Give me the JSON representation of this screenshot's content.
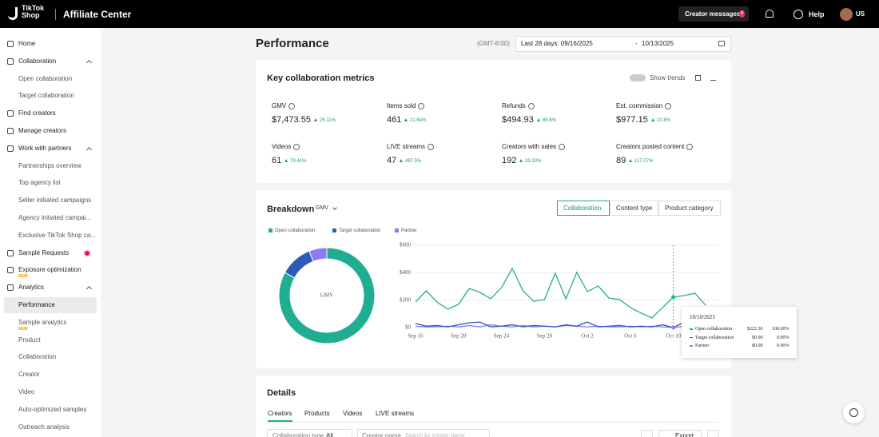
{
  "header": {
    "logo": [
      "TikTok",
      "Shop"
    ],
    "app_title": "Affiliate Center",
    "messages": "Creator messages",
    "messages_badge": "8",
    "help": "Help",
    "region": "US"
  },
  "sidebar": {
    "sections": [
      {
        "label": "Home"
      },
      {
        "label": "Collaboration",
        "children": [
          {
            "label": "Open collaboration"
          },
          {
            "label": "Target collaboration"
          }
        ]
      },
      {
        "label": "Find creators"
      },
      {
        "label": "Manage creators"
      },
      {
        "label": "Work with partners",
        "children": [
          {
            "label": "Partnerships overview"
          },
          {
            "label": "Top agency list"
          },
          {
            "label": "Seller initiated campaigns"
          },
          {
            "label": "Agency initiated campai..."
          },
          {
            "label": "Exclusive TikTok Shop ca..."
          }
        ]
      },
      {
        "label": "Sample Requests",
        "dot": true
      },
      {
        "label": "Exposure optimization",
        "badge": "NEW"
      },
      {
        "label": "Analytics",
        "children": [
          {
            "label": "Performance",
            "selected": true
          },
          {
            "label": "Sample analytics",
            "badge": "NEW"
          },
          {
            "label": "Product"
          },
          {
            "label": "Collaboration"
          },
          {
            "label": "Creator"
          },
          {
            "label": "Video"
          },
          {
            "label": "Auto-optimized samples"
          },
          {
            "label": "Outreach analysis"
          }
        ]
      }
    ]
  },
  "page": {
    "title": "Performance",
    "timezone": "(GMT-8:00)",
    "date_start": "Last 28 days: 09/16/2025",
    "date_sep": "-",
    "date_end": "10/13/2025"
  },
  "metrics": {
    "title": "Key collaboration metrics",
    "show_trends": "Show trends",
    "items": [
      {
        "label": "GMV",
        "value": "$7,473.55",
        "change": "25.11%"
      },
      {
        "label": "Items sold",
        "value": "461",
        "change": "21.64%"
      },
      {
        "label": "Refunds",
        "value": "$494.93",
        "change": "85.6%"
      },
      {
        "label": "Est. commission",
        "value": "$977.15",
        "change": "10.8%"
      },
      {
        "label": "Videos",
        "value": "61",
        "change": "79.41%"
      },
      {
        "label": "LIVE streams",
        "value": "47",
        "change": "487.5%"
      },
      {
        "label": "Creators with sales",
        "value": "192",
        "change": "33.33%"
      },
      {
        "label": "Creators posted content",
        "value": "89",
        "change": "117.07%"
      }
    ]
  },
  "breakdown": {
    "title": "Breakdown",
    "metric": "GMV",
    "tabs": [
      "Collaboration",
      "Content type",
      "Product category"
    ],
    "active_tab": 0,
    "donut": {
      "label": "GMV",
      "values": [
        83,
        11,
        6
      ]
    },
    "chart": {
      "type": "line",
      "categories": [
        "Sep 16",
        null,
        null,
        null,
        "Sep 20",
        null,
        null,
        null,
        "Sep 24",
        null,
        null,
        null,
        "Sep 28",
        null,
        null,
        null,
        "Oct 2",
        null,
        null,
        null,
        "Oct 6",
        null,
        null,
        null,
        "Oct 10",
        null,
        null,
        null
      ],
      "ylim": [
        0,
        600
      ],
      "yticks": [
        {
          "value": 0,
          "label": "$0"
        },
        {
          "value": 200,
          "label": "$200"
        },
        {
          "value": 400,
          "label": "$400"
        },
        {
          "value": 600,
          "label": "$600"
        }
      ],
      "series": [
        {
          "name": "Open collaboration",
          "color": "#1fae92",
          "values": [
            186,
            268,
            186,
            134,
            169,
            285,
            256,
            210,
            291,
            431,
            268,
            192,
            204,
            396,
            210,
            402,
            262,
            303,
            215,
            204,
            146,
            105,
            70,
            146,
            222.3,
            233,
            250,
            163
          ]
        },
        {
          "name": "Target collaboration",
          "color": "#2b5cb8",
          "values": [
            30,
            10,
            15,
            5,
            20,
            35,
            40,
            5,
            10,
            20,
            5,
            15,
            10,
            5,
            20,
            10,
            40,
            5,
            10,
            15,
            5,
            10,
            5,
            20,
            0,
            40,
            30,
            20
          ]
        },
        {
          "name": "Partner",
          "color": "#8d7cf3",
          "values": [
            10,
            5,
            5,
            10,
            5,
            15,
            5,
            20,
            10,
            5,
            15,
            5,
            10,
            5,
            15,
            10,
            5,
            10,
            5,
            5,
            10,
            5,
            10,
            5,
            0,
            10,
            5,
            5
          ]
        }
      ]
    },
    "tooltip": {
      "date": "10/10/2025",
      "rows": [
        {
          "value": "$222.30",
          "share": "100.00%"
        },
        {
          "value": "$0.00",
          "share": "0.00%"
        },
        {
          "value": "$0.00",
          "share": "0.00%"
        }
      ]
    }
  },
  "details": {
    "title": "Details",
    "tabs": [
      "Creators",
      "Products",
      "Videos",
      "LIVE streams"
    ],
    "filter_label": "Collaboration type",
    "filter_value": "All",
    "search_label": "Creator name",
    "search_placeholder": "Search by creator name",
    "export": "Export"
  }
}
